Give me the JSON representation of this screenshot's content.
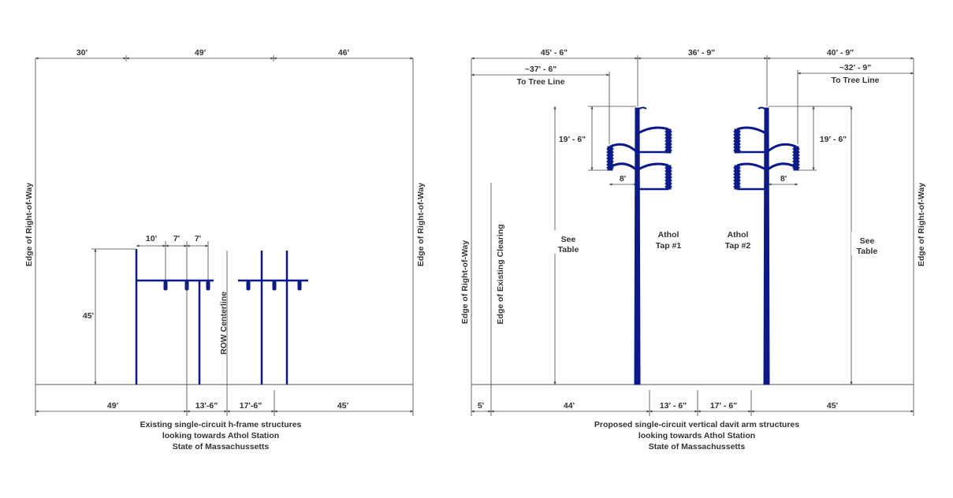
{
  "left": {
    "top_dims": [
      "30'",
      "49'",
      "46'"
    ],
    "edge_left": "Edge of Right-of-Way",
    "edge_right": "Edge of Right-of-Way",
    "crossarm_dims": [
      "10'",
      "7'",
      "7'"
    ],
    "height_dim": "45'",
    "centerline": "ROW Centerline",
    "bottom_dims": [
      "49'",
      "13'-6\"",
      "17'-6\"",
      "45'"
    ],
    "caption": [
      "Existing single-circuit h-frame structures",
      "looking towards Athol Station",
      "State of Massachussetts"
    ]
  },
  "right": {
    "top_dims": [
      "45' - 6\"",
      "36' - 9\"",
      "40' - 9\""
    ],
    "tree_left": [
      "~37' - 6\"",
      "To Tree Line"
    ],
    "tree_right": [
      "~32' - 9\"",
      "To Tree Line"
    ],
    "arm_spacing_left": "19' - 6\"",
    "arm_spacing_right": "19' - 6\"",
    "arm_len_left": "8'",
    "arm_len_right": "8'",
    "see_table_left": [
      "See",
      "Table"
    ],
    "see_table_right": [
      "See",
      "Table"
    ],
    "pole_left": [
      "Athol",
      "Tap #1"
    ],
    "pole_right": [
      "Athol",
      "Tap #2"
    ],
    "edge_left": "Edge of Right-of-Way",
    "clearing": "Edge of Existing Clearing",
    "edge_right": "Edge of Right-of-Way",
    "bottom_dims": [
      "5'",
      "44'",
      "13' - 6\"",
      "17' - 6\"",
      "45'"
    ],
    "caption": [
      "Proposed single-circuit vertical davit arm structures",
      "looking towards Athol Station",
      "State of Massachussetts"
    ]
  },
  "colors": {
    "structure": "#0a1a8c",
    "lines": "#444444",
    "text": "#333333"
  }
}
